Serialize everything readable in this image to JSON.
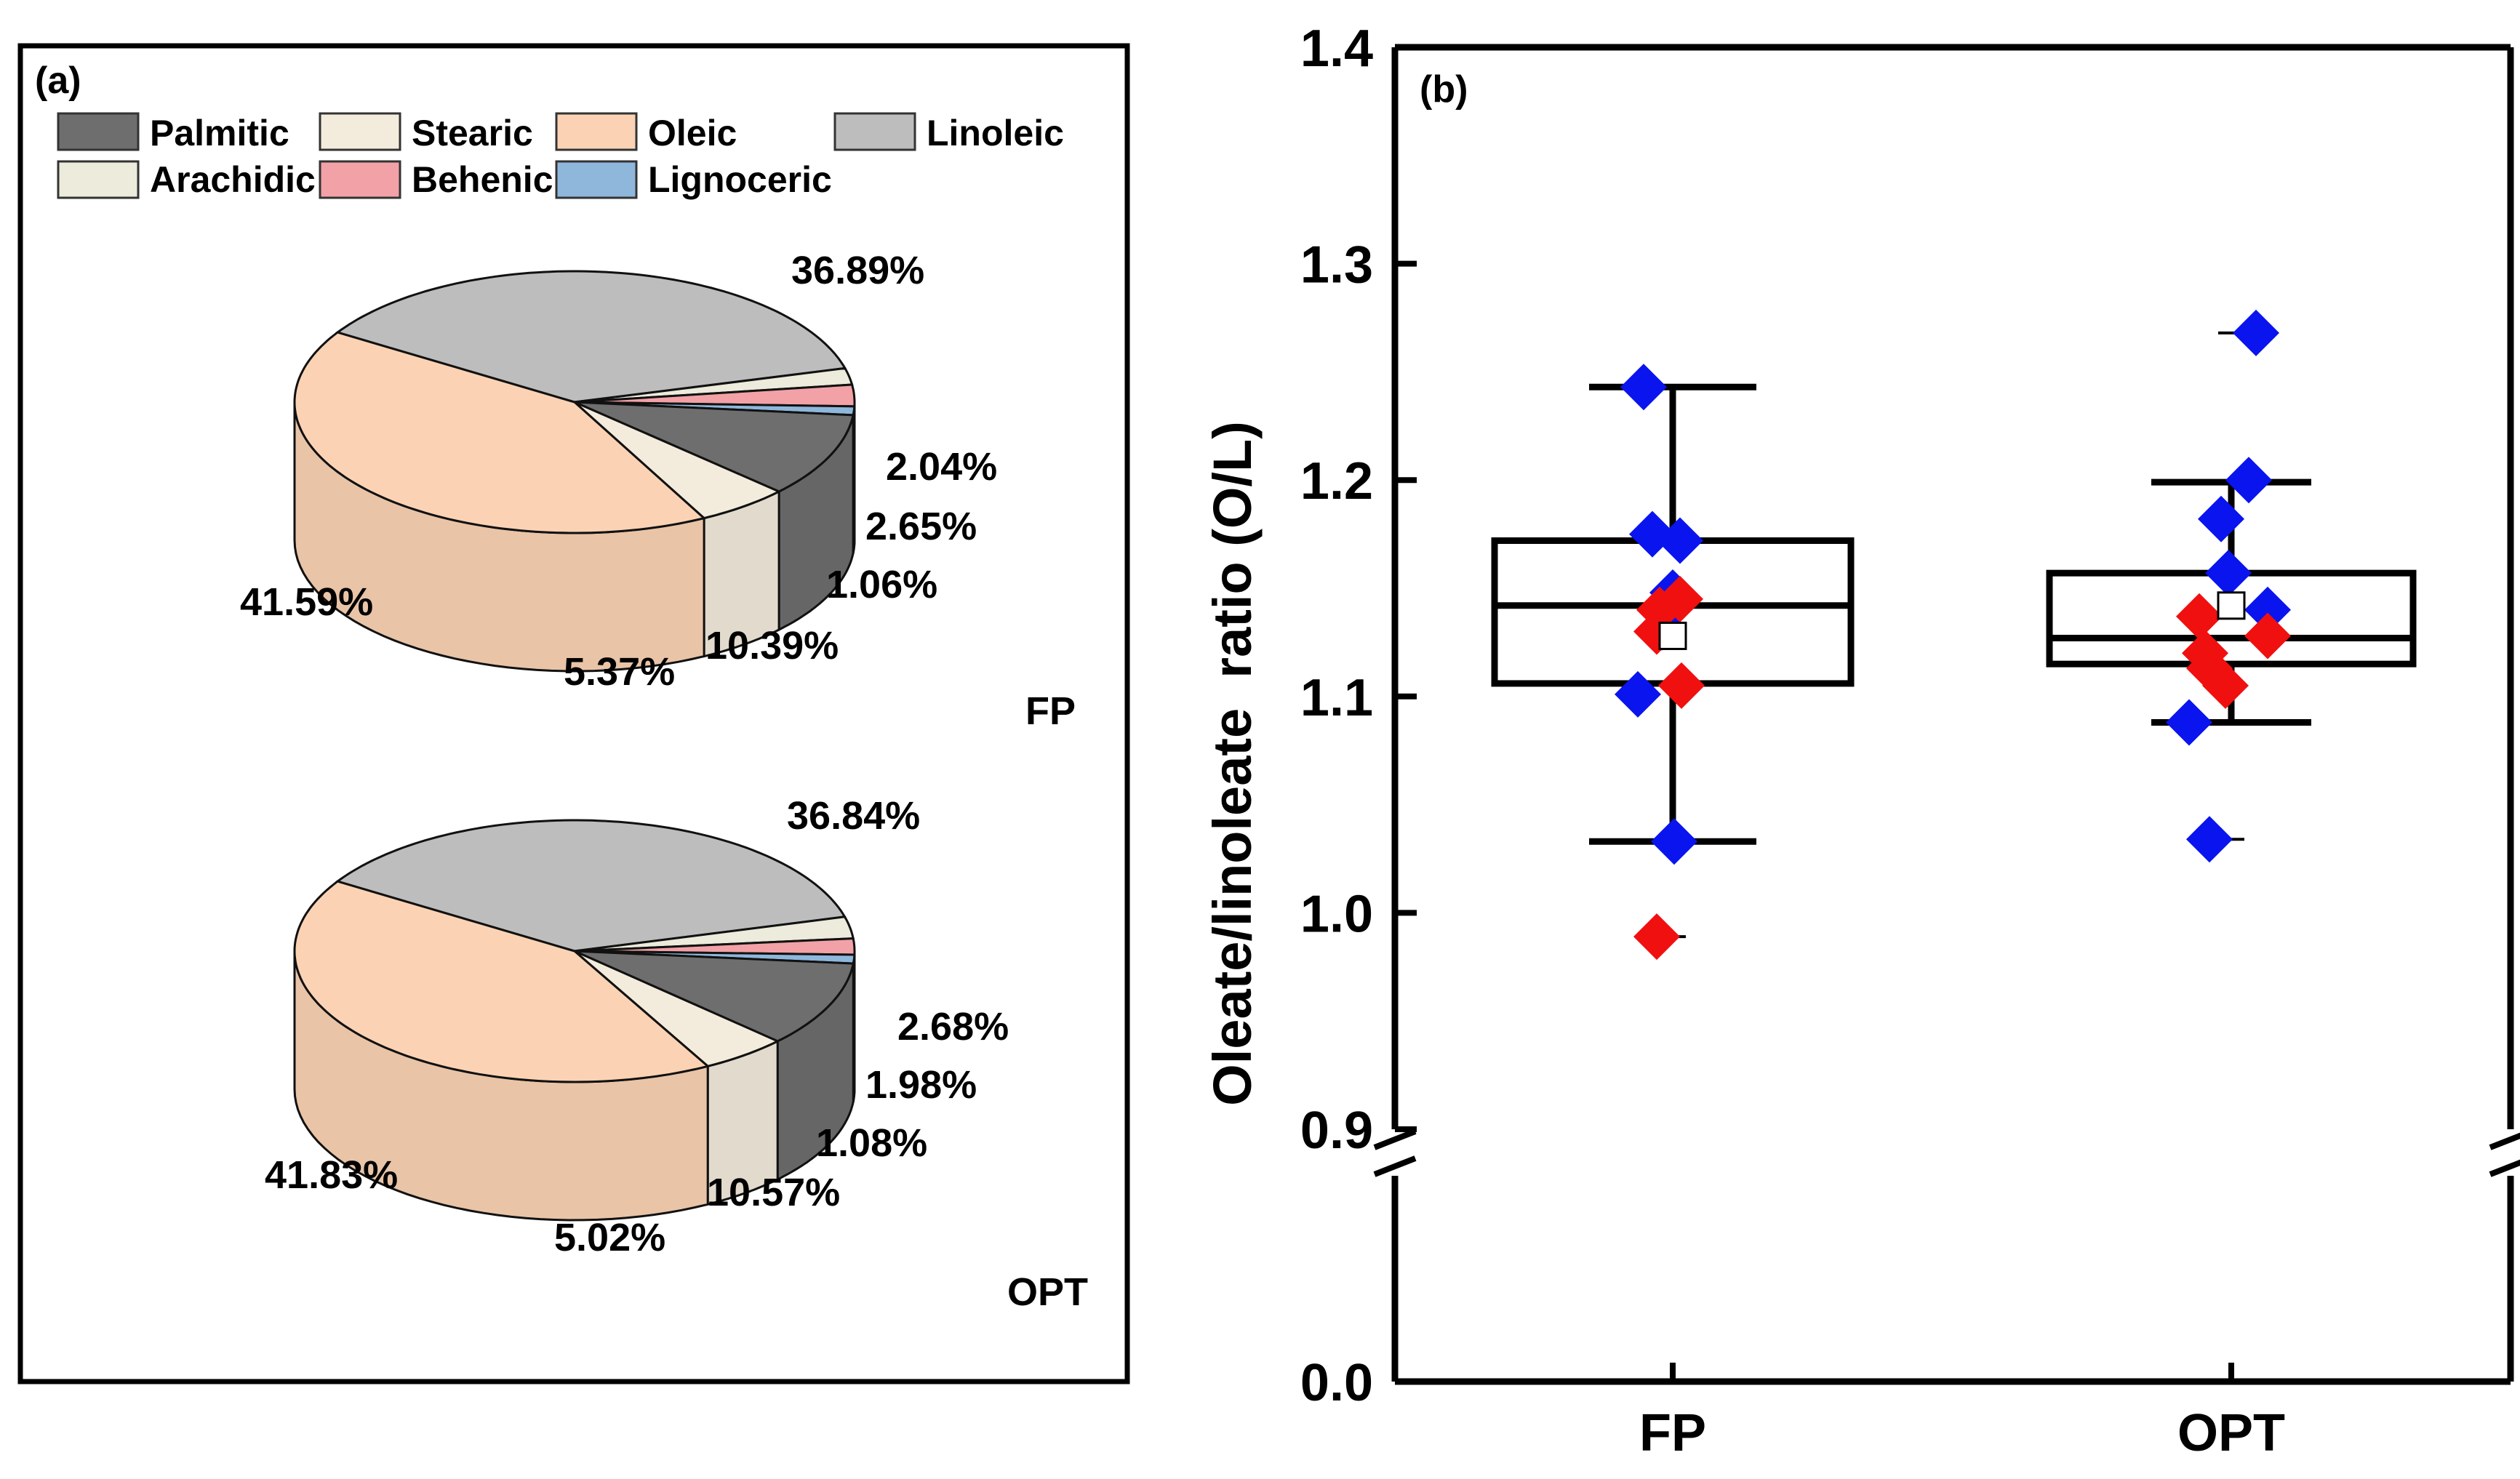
{
  "chart_data": [
    {
      "type": "pie",
      "panel_label": "(a)",
      "legend": [
        "Palmitic",
        "Stearic",
        "Oleic",
        "Linoleic",
        "Arachidic",
        "Behenic",
        "Lignoceric"
      ],
      "colors": {
        "Palmitic": "#6e6e6e",
        "Stearic": "#f3ecdc",
        "Oleic": "#fbd3b4",
        "Linoleic": "#bdbdbd",
        "Arachidic": "#ecebdc",
        "Behenic": "#f2a1a7",
        "Lignoceric": "#8fb7dc"
      },
      "pies": [
        {
          "name": "FP",
          "slices": [
            {
              "label": "Linoleic",
              "value": 36.89,
              "text": "36.89%"
            },
            {
              "label": "Arachidic",
              "value": 2.04,
              "text": "2.04%"
            },
            {
              "label": "Behenic",
              "value": 2.65,
              "text": "2.65%"
            },
            {
              "label": "Lignoceric",
              "value": 1.06,
              "text": "1.06%"
            },
            {
              "label": "Palmitic",
              "value": 10.39,
              "text": "10.39%"
            },
            {
              "label": "Stearic",
              "value": 5.37,
              "text": "5.37%"
            },
            {
              "label": "Oleic",
              "value": 41.59,
              "text": "41.59%"
            }
          ]
        },
        {
          "name": "OPT",
          "slices": [
            {
              "label": "Linoleic",
              "value": 36.84,
              "text": "36.84%"
            },
            {
              "label": "Arachidic",
              "value": 2.68,
              "text": "2.68%"
            },
            {
              "label": "Behenic",
              "value": 1.98,
              "text": "1.98%"
            },
            {
              "label": "Lignoceric",
              "value": 1.08,
              "text": "1.08%"
            },
            {
              "label": "Palmitic",
              "value": 10.57,
              "text": "10.57%"
            },
            {
              "label": "Stearic",
              "value": 5.02,
              "text": "5.02%"
            },
            {
              "label": "Oleic",
              "value": 41.83,
              "text": "41.83%"
            }
          ]
        }
      ]
    },
    {
      "type": "box",
      "panel_label": "(b)",
      "ylabel": "Oleate/linoleate  ratio (O/L)",
      "categories": [
        "FP",
        "OPT"
      ],
      "yticks_upper": [
        "0.9",
        "1.0",
        "1.1",
        "1.2",
        "1.3",
        "1.4"
      ],
      "ytick_lower": "0.0",
      "ylim": [
        0.9,
        1.4
      ],
      "axis_break": true,
      "boxes": [
        {
          "category": "FP",
          "whisker_low": 1.033,
          "q1": 1.106,
          "median": 1.142,
          "q3": 1.172,
          "whisker_high": 1.243,
          "mean": 1.128,
          "min": 0.989,
          "max": 1.243,
          "blue_points": [
            1.243,
            1.175,
            1.172,
            1.148,
            1.132,
            1.101,
            1.033
          ],
          "red_points": [
            1.145,
            1.14,
            1.13,
            1.105,
            0.989
          ]
        },
        {
          "category": "OPT",
          "whisker_low": 1.088,
          "q1": 1.115,
          "median": 1.127,
          "q3": 1.157,
          "whisker_high": 1.199,
          "mean": 1.142,
          "min": 1.034,
          "max": 1.268,
          "blue_points": [
            1.268,
            1.2,
            1.182,
            1.157,
            1.14,
            1.088,
            1.034
          ],
          "red_points": [
            1.137,
            1.128,
            1.12,
            1.113,
            1.105
          ]
        }
      ],
      "point_colors": {
        "blue": "#0a14ee",
        "red": "#f01010"
      }
    }
  ]
}
